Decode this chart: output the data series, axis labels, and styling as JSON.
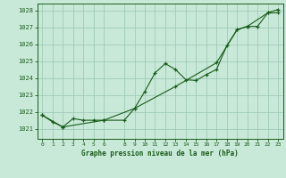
{
  "title": "Graphe pression niveau de la mer (hPa)",
  "background_color": "#c8e8d8",
  "grid_color": "#a0ccb8",
  "line_color": "#1a5c1a",
  "x_ticks": [
    0,
    1,
    2,
    3,
    4,
    5,
    6,
    8,
    9,
    10,
    11,
    12,
    13,
    14,
    15,
    16,
    17,
    18,
    19,
    20,
    21,
    22,
    23
  ],
  "x_tick_labels": [
    "0",
    "1",
    "2",
    "3",
    "4",
    "5",
    "6",
    "8",
    "9",
    "10",
    "11",
    "12",
    "13",
    "14",
    "15",
    "16",
    "17",
    "18",
    "19",
    "20",
    "21",
    "22",
    "23"
  ],
  "y_ticks": [
    1021,
    1022,
    1023,
    1024,
    1025,
    1026,
    1027,
    1028
  ],
  "ylim": [
    1020.4,
    1028.4
  ],
  "xlim": [
    -0.5,
    23.5
  ],
  "series1_x": [
    0,
    1,
    2,
    3,
    4,
    5,
    6,
    8,
    9,
    10,
    11,
    12,
    13,
    14,
    15,
    16,
    17,
    18,
    19,
    20,
    21,
    22,
    23
  ],
  "series1_y": [
    1021.8,
    1021.4,
    1021.1,
    1021.6,
    1021.5,
    1021.5,
    1021.5,
    1021.5,
    1022.2,
    1023.2,
    1024.3,
    1024.85,
    1024.5,
    1023.9,
    1023.85,
    1024.2,
    1024.5,
    1025.9,
    1026.85,
    1027.05,
    1027.05,
    1027.85,
    1027.85
  ],
  "series2_x": [
    0,
    2,
    6,
    9,
    13,
    17,
    19,
    20,
    22,
    23
  ],
  "series2_y": [
    1021.8,
    1021.1,
    1021.5,
    1022.2,
    1023.5,
    1024.9,
    1026.85,
    1027.05,
    1027.85,
    1028.05
  ]
}
